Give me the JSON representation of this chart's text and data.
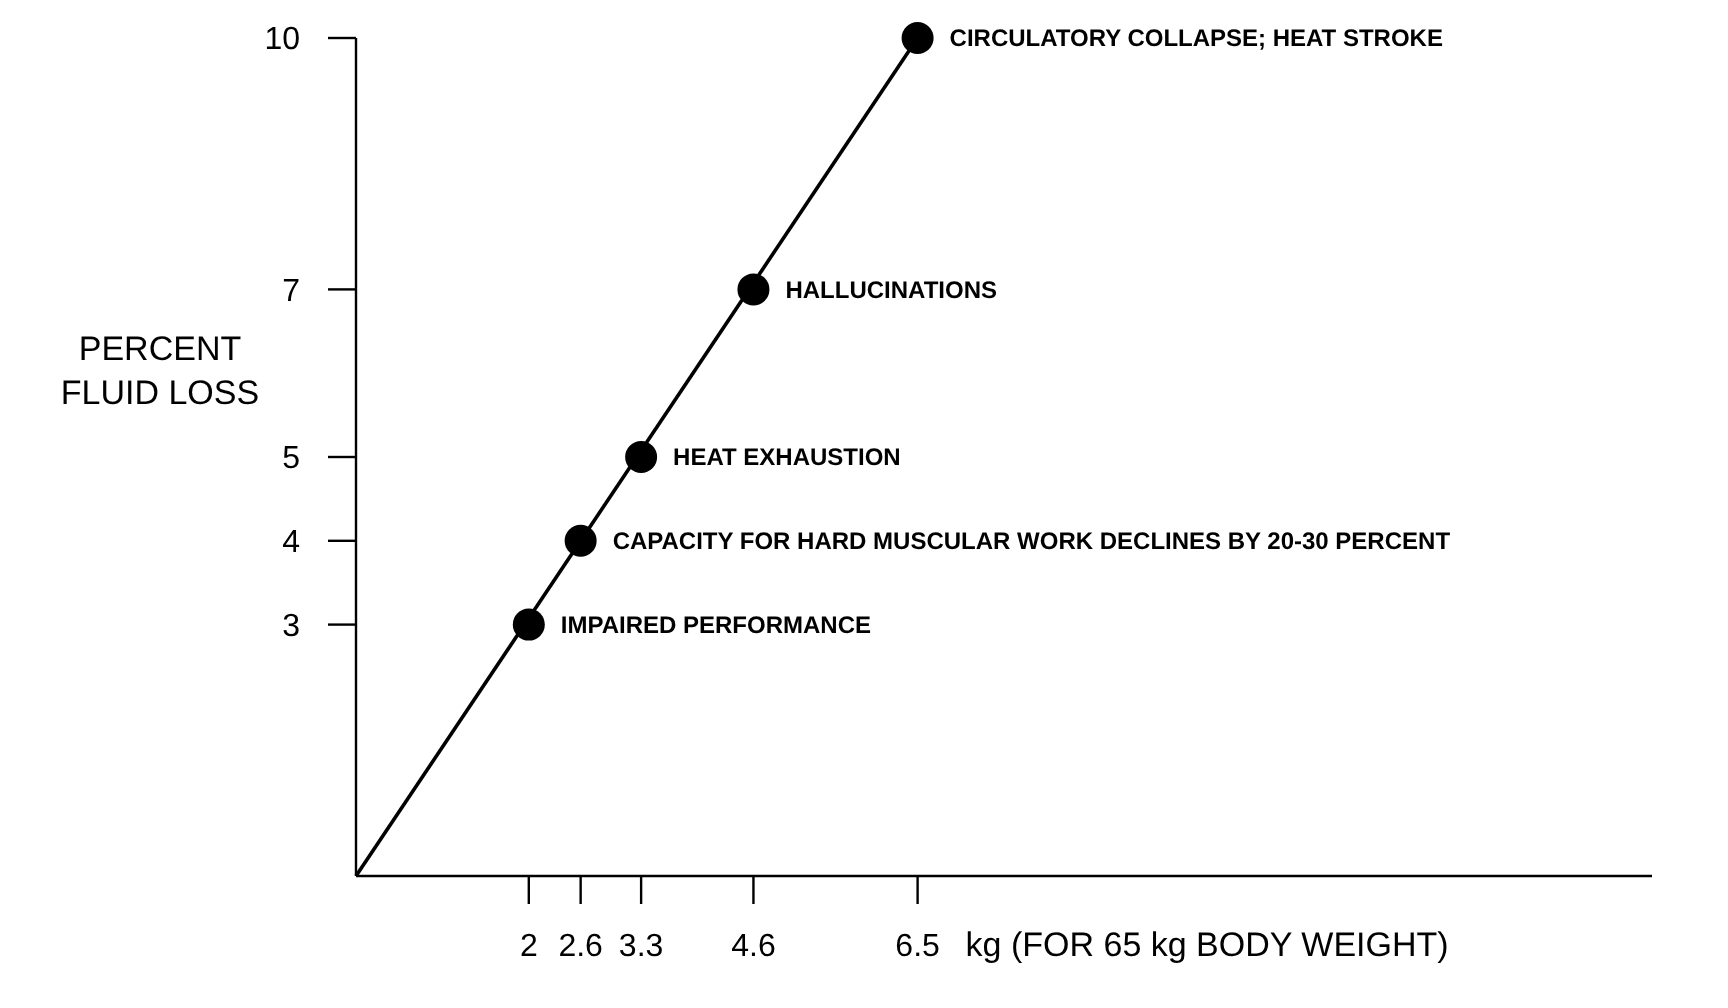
{
  "chart_data": {
    "type": "line",
    "xlabel": "kg (FOR 65 kg BODY WEIGHT)",
    "ylabel": "PERCENT FLUID LOSS",
    "xlim": [
      0,
      15
    ],
    "ylim": [
      0,
      10
    ],
    "xticks": [
      2,
      2.6,
      3.3,
      4.6,
      6.5
    ],
    "yticks": [
      3,
      4,
      5,
      7,
      10
    ],
    "grid": false,
    "series": [
      {
        "color": "#000000",
        "marker": "none",
        "x": [
          0,
          6.5
        ],
        "values": [
          0,
          10
        ]
      },
      {
        "type": "scatter",
        "color": "#000000",
        "marker": "circle",
        "x": [
          2,
          2.6,
          3.3,
          4.6,
          6.5
        ],
        "values": [
          3,
          4,
          5,
          7,
          10
        ]
      }
    ],
    "annotations": [
      {
        "text": "IMPAIRED PERFORMANCE",
        "x": 2,
        "y": 3
      },
      {
        "text": "CAPACITY FOR HARD MUSCULAR WORK DECLINES BY 20-30 PERCENT",
        "x": 2.6,
        "y": 4
      },
      {
        "text": "HEAT EXHAUSTION",
        "x": 3.3,
        "y": 5
      },
      {
        "text": "HALLUCINATIONS",
        "x": 4.6,
        "y": 7
      },
      {
        "text": "CIRCULATORY COLLAPSE; HEAT STROKE",
        "x": 6.5,
        "y": 10
      }
    ]
  }
}
